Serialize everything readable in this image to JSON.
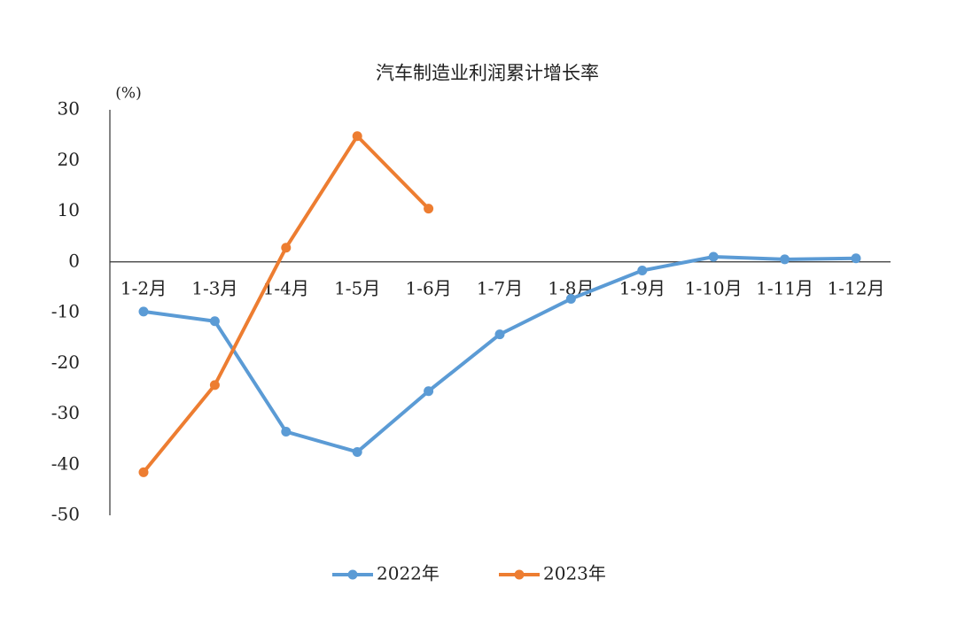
{
  "chart_data": {
    "type": "line",
    "title": "汽车制造业利润累计增长率",
    "y_unit": "(%)",
    "categories": [
      "1-2月",
      "1-3月",
      "1-4月",
      "1-5月",
      "1-6月",
      "1-7月",
      "1-8月",
      "1-9月",
      "1-10月",
      "1-11月",
      "1-12月"
    ],
    "series": [
      {
        "name": "2022年",
        "color": "#5b9bd5",
        "values": [
          -9.8,
          -11.7,
          -33.5,
          -37.5,
          -25.5,
          -14.3,
          -7.3,
          -1.7,
          1.0,
          0.5,
          0.7
        ]
      },
      {
        "name": "2023年",
        "color": "#ed7d31",
        "values": [
          -41.5,
          -24.3,
          2.8,
          24.8,
          10.5,
          null,
          null,
          null,
          null,
          null,
          null
        ]
      }
    ],
    "ylim": [
      -50,
      30
    ],
    "yticks": [
      -50,
      -40,
      -30,
      -20,
      -10,
      0,
      10,
      20,
      30
    ],
    "negative_tick_color": "#e02020",
    "grid": false,
    "legend": "bottom"
  }
}
